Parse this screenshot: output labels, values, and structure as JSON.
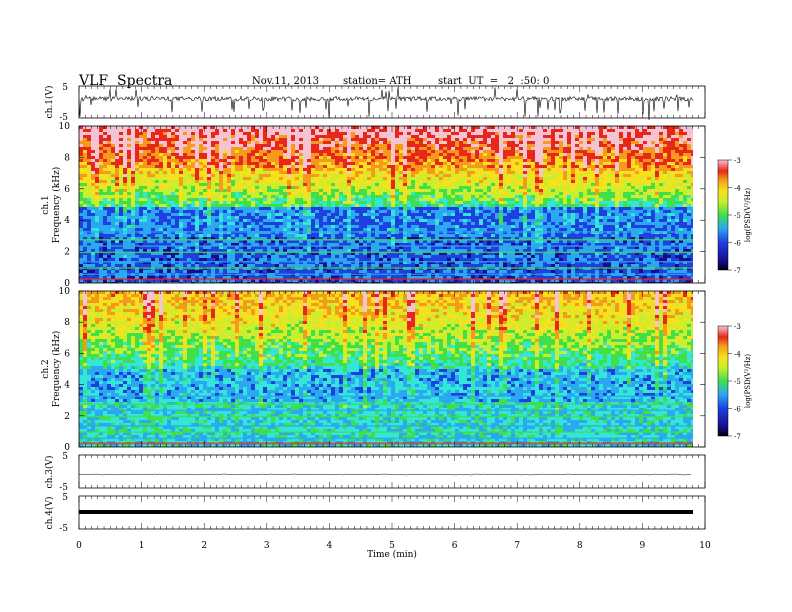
{
  "header": {
    "title": "VLF  Spectra",
    "date": "Nov.11, 2013",
    "station": "station= ATH",
    "start": "start  UT  =   2  :50: 0"
  },
  "colors": {
    "colormap": [
      "#1a0a8c",
      "#1f3fe0",
      "#2aa8f0",
      "#33e6d8",
      "#3fe04a",
      "#c8ee2e",
      "#f7e01e",
      "#f59a1a",
      "#e8261a",
      "#f5c4d4"
    ],
    "trace": "#000000"
  },
  "chart_data": [
    {
      "type": "line",
      "panel": "ch1-waveform",
      "ylabel": "ch.1(V)",
      "ylim": [
        -5,
        5
      ],
      "yticks": [
        "5",
        "-5"
      ],
      "note_level": "baseline near +1 V with frequent negative spikes",
      "x": [
        0,
        1,
        2,
        3,
        4,
        5,
        6,
        7,
        8,
        9,
        9.8
      ],
      "y": [
        1,
        1,
        1,
        1,
        1,
        1,
        1,
        1,
        1,
        1,
        1
      ]
    },
    {
      "type": "heatmap",
      "panel": "ch1-spectrogram",
      "ylabel": "ch.1\nFrequency  (kHz)",
      "ylim": [
        0,
        10
      ],
      "yticks": [
        "0",
        "2",
        "4",
        "6",
        "8",
        "10"
      ],
      "xlim": [
        0,
        9.8
      ],
      "colorbar_label": "log(PSD(V²/Hz)",
      "colorbar_range": [
        -7,
        -3
      ],
      "colorbar_ticks": [
        "-3",
        "-4",
        "-5",
        "-6",
        "-7"
      ]
    },
    {
      "type": "heatmap",
      "panel": "ch2-spectrogram",
      "ylabel": "ch.2\nFrequency  (kHz)",
      "ylim": [
        0,
        10
      ],
      "yticks": [
        "0",
        "2",
        "4",
        "6",
        "8",
        "10"
      ],
      "xlim": [
        0,
        9.8
      ],
      "colorbar_label": "log(PSD(V²/Hz)",
      "colorbar_range": [
        -7,
        -3
      ],
      "colorbar_ticks": [
        "-3",
        "-4",
        "-5",
        "-6",
        "-7"
      ]
    },
    {
      "type": "line",
      "panel": "ch3-waveform",
      "ylabel": "ch.3(V)",
      "ylim": [
        -5,
        5
      ],
      "yticks": [
        "5",
        "-5"
      ],
      "x": [
        0,
        9.8
      ],
      "y": [
        0,
        0
      ]
    },
    {
      "type": "line",
      "panel": "ch4-waveform",
      "ylabel": "ch.4(V)",
      "ylim": [
        -5,
        5
      ],
      "yticks": [
        "5",
        "-5"
      ],
      "x": [
        0,
        9.8
      ],
      "y": [
        0,
        0
      ]
    }
  ],
  "xaxis": {
    "label": "Time  (min)",
    "ticks": [
      "0",
      "1",
      "2",
      "3",
      "4",
      "5",
      "6",
      "7",
      "8",
      "9",
      "10"
    ],
    "xlim": [
      0,
      10
    ]
  }
}
